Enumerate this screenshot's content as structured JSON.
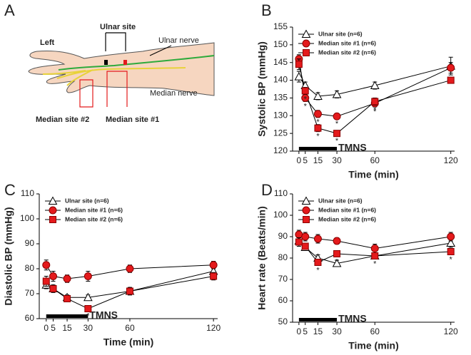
{
  "illustration": {
    "panel": "A",
    "side": "Left",
    "ulnar_site": "Ulnar site",
    "ulnar_nerve": "Ulnar nerve",
    "median_nerve": "Median nerve",
    "median_site_2": "Median site #2",
    "median_site_1": "Median site #1"
  },
  "chart_data": [
    {
      "panel": "B",
      "type": "line",
      "ylabel": "Systolic BP (mmHg)",
      "xlabel": "Time (min)",
      "x": [
        0,
        5,
        15,
        30,
        60,
        120
      ],
      "xlim": [
        -5,
        123
      ],
      "xticks": [
        0,
        5,
        15,
        30,
        60,
        120
      ],
      "ylim": [
        120,
        155
      ],
      "yticks": [
        120,
        125,
        130,
        135,
        140,
        145,
        150,
        155
      ],
      "stimulation": {
        "label": "TMNS",
        "range": [
          0,
          30
        ]
      },
      "series": [
        {
          "name": "Ulnar site (n=6)",
          "marker": "triangle",
          "color": "#ffffff",
          "values": [
            141,
            138.5,
            135.5,
            136,
            138.5,
            144
          ],
          "errors": [
            1.5,
            1,
            1,
            1,
            1,
            2.5
          ],
          "sig": [
            null,
            null,
            null,
            null,
            null,
            null
          ]
        },
        {
          "name": "Median site #1 (n=6)",
          "marker": "circle",
          "color": "#e41a1c",
          "values": [
            146,
            135,
            130.5,
            129.8,
            133.5,
            143.5
          ],
          "errors": [
            1.2,
            1,
            1,
            0.8,
            1,
            1.5
          ],
          "sig": [
            null,
            "*",
            "*",
            "*",
            "*",
            null
          ]
        },
        {
          "name": "Median site #2 (n=6)",
          "marker": "square",
          "color": "#e41a1c",
          "values": [
            144.5,
            137,
            126.5,
            125,
            134,
            140
          ],
          "errors": [
            1.5,
            1,
            1,
            0.8,
            1,
            0.8
          ],
          "sig": [
            null,
            "*",
            "*",
            "*",
            "*",
            null
          ]
        }
      ]
    },
    {
      "panel": "C",
      "type": "line",
      "ylabel": "Diastolic BP (mmHg)",
      "xlabel": "Time (min)",
      "x": [
        0,
        5,
        15,
        30,
        60,
        120
      ],
      "xlim": [
        -5,
        123
      ],
      "xticks": [
        0,
        5,
        15,
        30,
        60,
        120
      ],
      "ylim": [
        60,
        110
      ],
      "yticks": [
        60,
        70,
        80,
        90,
        100,
        110
      ],
      "stimulation": {
        "label": "TMNS",
        "range": [
          0,
          30
        ]
      },
      "series": [
        {
          "name": "Ulnar site (n=6)",
          "marker": "triangle",
          "color": "#ffffff",
          "values": [
            73.5,
            72,
            68.5,
            68.5,
            71,
            79
          ],
          "errors": [
            1.5,
            1.5,
            1,
            1,
            1.5,
            2
          ],
          "sig": [
            null,
            null,
            null,
            null,
            null,
            null
          ]
        },
        {
          "name": "Median site #1 (n=6)",
          "marker": "circle",
          "color": "#e41a1c",
          "values": [
            81.5,
            77,
            76,
            77,
            80,
            81.5
          ],
          "errors": [
            2,
            2,
            1.5,
            2,
            1.5,
            1.5
          ],
          "sig": [
            null,
            null,
            null,
            null,
            null,
            null
          ]
        },
        {
          "name": "Median site #2 (n=6)",
          "marker": "square",
          "color": "#e41a1c",
          "values": [
            75,
            72,
            68,
            64,
            71,
            77
          ],
          "errors": [
            2,
            1.5,
            1,
            1,
            1.5,
            1.5
          ],
          "sig": [
            null,
            null,
            null,
            "*",
            null,
            null
          ]
        }
      ]
    },
    {
      "panel": "D",
      "type": "line",
      "ylabel": "Heart rate (Beats/min)",
      "xlabel": "Time (min)",
      "x": [
        0,
        5,
        15,
        30,
        60,
        120
      ],
      "xlim": [
        -5,
        123
      ],
      "xticks": [
        0,
        5,
        15,
        30,
        60,
        120
      ],
      "ylim": [
        50,
        110
      ],
      "yticks": [
        50,
        60,
        70,
        80,
        90,
        100,
        110
      ],
      "stimulation": {
        "label": "TMNS",
        "range": [
          0,
          30
        ]
      },
      "series": [
        {
          "name": "Ulnar site (n=6)",
          "marker": "triangle",
          "color": "#ffffff",
          "values": [
            88,
            85,
            80,
            77.5,
            81,
            87
          ],
          "errors": [
            1.5,
            1.5,
            1.5,
            1.5,
            1.5,
            2
          ],
          "sig": [
            null,
            null,
            null,
            null,
            null,
            null
          ]
        },
        {
          "name": "Median site #1 (n=6)",
          "marker": "circle",
          "color": "#e41a1c",
          "values": [
            91,
            90,
            89,
            88,
            84.5,
            90
          ],
          "errors": [
            2,
            2,
            2,
            1.5,
            2,
            2
          ],
          "sig": [
            null,
            null,
            null,
            null,
            null,
            null
          ]
        },
        {
          "name": "Median site #2 (n=6)",
          "marker": "square",
          "color": "#e41a1c",
          "values": [
            87.5,
            85.5,
            78,
            82,
            81,
            83
          ],
          "errors": [
            2,
            1.5,
            1.5,
            1.5,
            1.5,
            1.5
          ],
          "sig": [
            null,
            null,
            "*",
            "*",
            "*",
            "*"
          ]
        }
      ]
    }
  ]
}
